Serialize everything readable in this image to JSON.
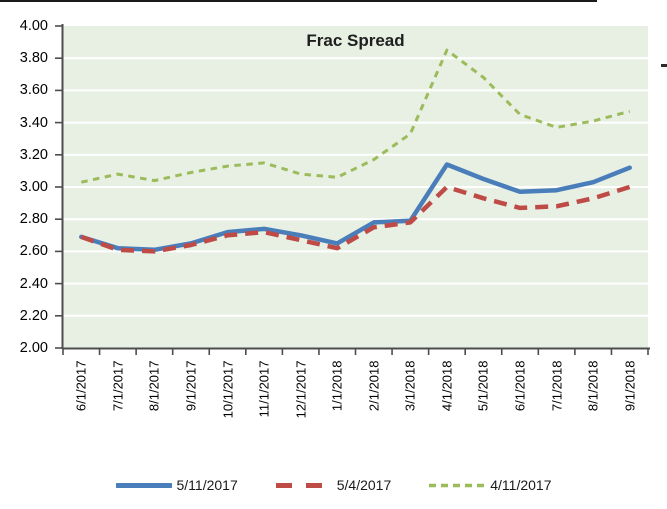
{
  "chart_data": {
    "type": "line",
    "title": "Frac Spread",
    "categories": [
      "6/1/2017",
      "7/1/2017",
      "8/1/2017",
      "9/1/2017",
      "10/1/2017",
      "11/1/2017",
      "12/1/2017",
      "1/1/2018",
      "2/1/2018",
      "3/1/2018",
      "4/1/2018",
      "5/1/2018",
      "6/1/2018",
      "7/1/2018",
      "8/1/2018",
      "9/1/2018"
    ],
    "series": [
      {
        "name": "5/11/2017",
        "style": "solid",
        "color": "#4a7ebb",
        "values": [
          2.69,
          2.62,
          2.61,
          2.65,
          2.72,
          2.74,
          2.7,
          2.65,
          2.78,
          2.79,
          3.14,
          3.05,
          2.97,
          2.98,
          3.03,
          3.12
        ]
      },
      {
        "name": "5/4/2017",
        "style": "dashed",
        "color": "#bf4b47",
        "values": [
          2.69,
          2.61,
          2.6,
          2.64,
          2.7,
          2.72,
          2.67,
          2.62,
          2.75,
          2.78,
          3.0,
          2.93,
          2.87,
          2.88,
          2.93,
          3.0
        ]
      },
      {
        "name": "4/11/2017",
        "style": "dotted",
        "color": "#9cbb5a",
        "values": [
          3.03,
          3.08,
          3.04,
          3.09,
          3.13,
          3.15,
          3.08,
          3.06,
          3.17,
          3.33,
          3.85,
          3.68,
          3.45,
          3.37,
          3.41,
          3.47
        ]
      }
    ],
    "ylim": [
      2.0,
      4.0
    ],
    "y_tick_step": 0.2,
    "y_tick_labels": [
      "4.00",
      "3.80",
      "3.60",
      "3.40",
      "3.20",
      "3.00",
      "2.80",
      "2.60",
      "2.40",
      "2.20",
      "2.00"
    ],
    "grid": "horizontal-white-lines",
    "legend_position": "bottom",
    "colors": {
      "plot_background": "#e7f0e3",
      "gridline": "#ffffff",
      "axis": "#4d4d4d",
      "text": "#1a1a1a"
    }
  }
}
